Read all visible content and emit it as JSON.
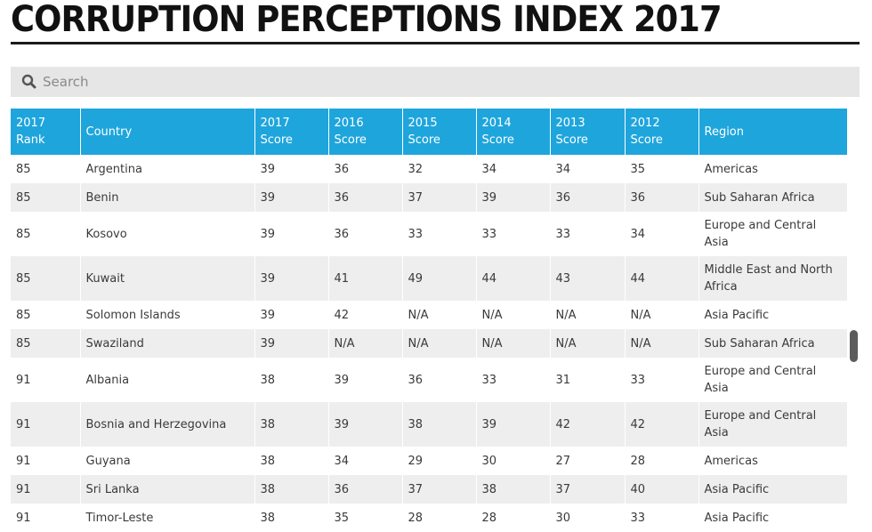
{
  "page": {
    "title": "CORRUPTION PERCEPTIONS INDEX 2017"
  },
  "search": {
    "placeholder": "Search",
    "icon": "search-icon"
  },
  "table": {
    "headers": [
      [
        "2017",
        "Rank"
      ],
      [
        "Country"
      ],
      [
        "2017",
        "Score"
      ],
      [
        "2016",
        "Score"
      ],
      [
        "2015",
        "Score"
      ],
      [
        "2014",
        "Score"
      ],
      [
        "2013",
        "Score"
      ],
      [
        "2012",
        "Score"
      ],
      [
        "Region"
      ]
    ],
    "rows": [
      {
        "rank": "85",
        "country": "Argentina",
        "s2017": "39",
        "s2016": "36",
        "s2015": "32",
        "s2014": "34",
        "s2013": "34",
        "s2012": "35",
        "region": [
          "Americas"
        ]
      },
      {
        "rank": "85",
        "country": "Benin",
        "s2017": "39",
        "s2016": "36",
        "s2015": "37",
        "s2014": "39",
        "s2013": "36",
        "s2012": "36",
        "region": [
          "Sub Saharan Africa"
        ]
      },
      {
        "rank": "85",
        "country": "Kosovo",
        "s2017": "39",
        "s2016": "36",
        "s2015": "33",
        "s2014": "33",
        "s2013": "33",
        "s2012": "34",
        "region": [
          "Europe and Central",
          "Asia"
        ]
      },
      {
        "rank": "85",
        "country": "Kuwait",
        "s2017": "39",
        "s2016": "41",
        "s2015": "49",
        "s2014": "44",
        "s2013": "43",
        "s2012": "44",
        "region": [
          "Middle East and North",
          "Africa"
        ]
      },
      {
        "rank": "85",
        "country": "Solomon Islands",
        "s2017": "39",
        "s2016": "42",
        "s2015": "N/A",
        "s2014": "N/A",
        "s2013": "N/A",
        "s2012": "N/A",
        "region": [
          "Asia Pacific"
        ]
      },
      {
        "rank": "85",
        "country": "Swaziland",
        "s2017": "39",
        "s2016": "N/A",
        "s2015": "N/A",
        "s2014": "N/A",
        "s2013": "N/A",
        "s2012": "N/A",
        "region": [
          "Sub Saharan Africa"
        ]
      },
      {
        "rank": "91",
        "country": "Albania",
        "s2017": "38",
        "s2016": "39",
        "s2015": "36",
        "s2014": "33",
        "s2013": "31",
        "s2012": "33",
        "region": [
          "Europe and Central",
          "Asia"
        ]
      },
      {
        "rank": "91",
        "country": "Bosnia and Herzegovina",
        "s2017": "38",
        "s2016": "39",
        "s2015": "38",
        "s2014": "39",
        "s2013": "42",
        "s2012": "42",
        "region": [
          "Europe and Central",
          "Asia"
        ]
      },
      {
        "rank": "91",
        "country": "Guyana",
        "s2017": "38",
        "s2016": "34",
        "s2015": "29",
        "s2014": "30",
        "s2013": "27",
        "s2012": "28",
        "region": [
          "Americas"
        ]
      },
      {
        "rank": "91",
        "country": "Sri Lanka",
        "s2017": "38",
        "s2016": "36",
        "s2015": "37",
        "s2014": "38",
        "s2013": "37",
        "s2012": "40",
        "region": [
          "Asia Pacific"
        ]
      },
      {
        "rank": "91",
        "country": "Timor-Leste",
        "s2017": "38",
        "s2016": "35",
        "s2015": "28",
        "s2014": "28",
        "s2013": "30",
        "s2012": "33",
        "region": [
          "Asia Pacific"
        ]
      }
    ]
  },
  "colors": {
    "header_bg": "#1ea5dc",
    "stripe": "#eeeeee",
    "search_bg": "#e6e6e6"
  }
}
